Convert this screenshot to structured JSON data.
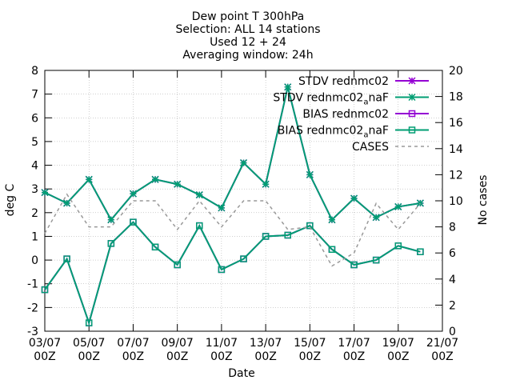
{
  "chart_data": {
    "type": "line",
    "title": [
      "Dew point T 300hPa",
      "Selection: ALL     14 stations",
      "Used 12 + 24",
      "Averaging window: 24h"
    ],
    "xlabel": "Date",
    "ylabel": "deg C",
    "y2label": "No cases",
    "xlim": [
      0,
      18
    ],
    "ylim": [
      -3,
      8
    ],
    "y2lim": [
      0,
      20
    ],
    "x_ticks": [
      {
        "x": 0,
        "line1": "03/07",
        "line2": "00Z"
      },
      {
        "x": 2,
        "line1": "05/07",
        "line2": "00Z"
      },
      {
        "x": 4,
        "line1": "07/07",
        "line2": "00Z"
      },
      {
        "x": 6,
        "line1": "09/07",
        "line2": "00Z"
      },
      {
        "x": 8,
        "line1": "11/07",
        "line2": "00Z"
      },
      {
        "x": 10,
        "line1": "13/07",
        "line2": "00Z"
      },
      {
        "x": 12,
        "line1": "15/07",
        "line2": "00Z"
      },
      {
        "x": 14,
        "line1": "17/07",
        "line2": "00Z"
      },
      {
        "x": 16,
        "line1": "19/07",
        "line2": "00Z"
      },
      {
        "x": 18,
        "line1": "21/07",
        "line2": "00Z"
      }
    ],
    "y_ticks": [
      "-3",
      "-2",
      "-1",
      "0",
      "1",
      "2",
      "3",
      "4",
      "5",
      "6",
      "7",
      "8"
    ],
    "y2_ticks": [
      "0",
      "2",
      "4",
      "6",
      "8",
      "10",
      "12",
      "14",
      "16",
      "18",
      "20"
    ],
    "grid": true,
    "legend_position": "top-right",
    "x": [
      0,
      1,
      2,
      3,
      4,
      5,
      6,
      7,
      8,
      9,
      10,
      11,
      12,
      13,
      14,
      15,
      16,
      17
    ],
    "series": [
      {
        "name": "STDV rednmc02",
        "axis": "y",
        "color": "#9400d3",
        "marker": "star",
        "values": [
          2.85,
          2.4,
          3.4,
          1.7,
          2.8,
          3.4,
          3.2,
          2.75,
          2.2,
          4.1,
          3.2,
          7.3,
          3.6,
          1.7,
          2.6,
          1.8,
          2.25,
          2.4
        ]
      },
      {
        "name": "STDV rednmc02_anaF",
        "legend_main": "STDV rednmc02",
        "legend_sub": "a",
        "legend_tail": "naF",
        "axis": "y",
        "color": "#009e73",
        "marker": "star",
        "values": [
          2.85,
          2.4,
          3.4,
          1.7,
          2.8,
          3.4,
          3.2,
          2.75,
          2.2,
          4.1,
          3.2,
          7.3,
          3.6,
          1.7,
          2.6,
          1.8,
          2.25,
          2.4
        ]
      },
      {
        "name": "BIAS rednmc02",
        "axis": "y",
        "color": "#9400d3",
        "marker": "square",
        "values": [
          -1.25,
          0.05,
          -2.65,
          0.7,
          1.6,
          0.55,
          -0.2,
          1.45,
          -0.4,
          0.05,
          1.0,
          1.05,
          1.45,
          0.45,
          -0.2,
          0.0,
          0.6,
          0.35
        ]
      },
      {
        "name": "BIAS rednmc02_anaF",
        "legend_main": "BIAS rednmc02",
        "legend_sub": "a",
        "legend_tail": "naF",
        "axis": "y",
        "color": "#009e73",
        "marker": "square",
        "values": [
          -1.25,
          0.05,
          -2.65,
          0.7,
          1.6,
          0.55,
          -0.2,
          1.45,
          -0.4,
          0.05,
          1.0,
          1.05,
          1.45,
          0.45,
          -0.2,
          0.0,
          0.6,
          0.35
        ]
      },
      {
        "name": "CASES",
        "axis": "y2",
        "color": "#999999",
        "marker": "none",
        "dashed": true,
        "values": [
          7.5,
          10.5,
          8.0,
          8.0,
          10.0,
          10.0,
          7.8,
          10.0,
          8.0,
          10.0,
          10.0,
          7.8,
          8.0,
          5.0,
          6.0,
          9.8,
          7.8,
          9.8
        ]
      }
    ]
  }
}
